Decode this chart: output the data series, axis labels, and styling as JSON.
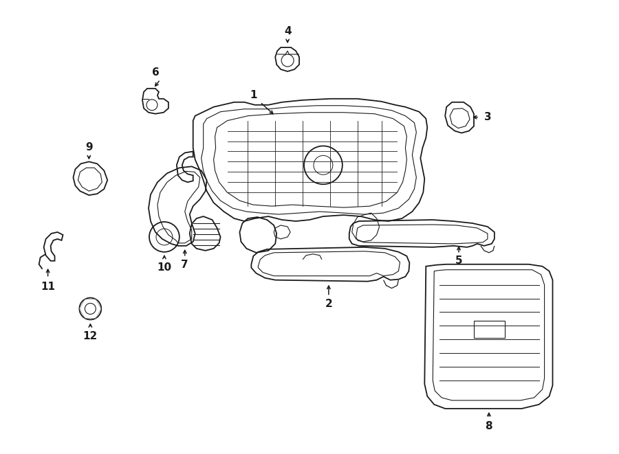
{
  "background_color": "#ffffff",
  "line_color": "#1a1a1a",
  "text_color": "#1a1a1a",
  "fig_width": 9.0,
  "fig_height": 6.61,
  "dpi": 100
}
